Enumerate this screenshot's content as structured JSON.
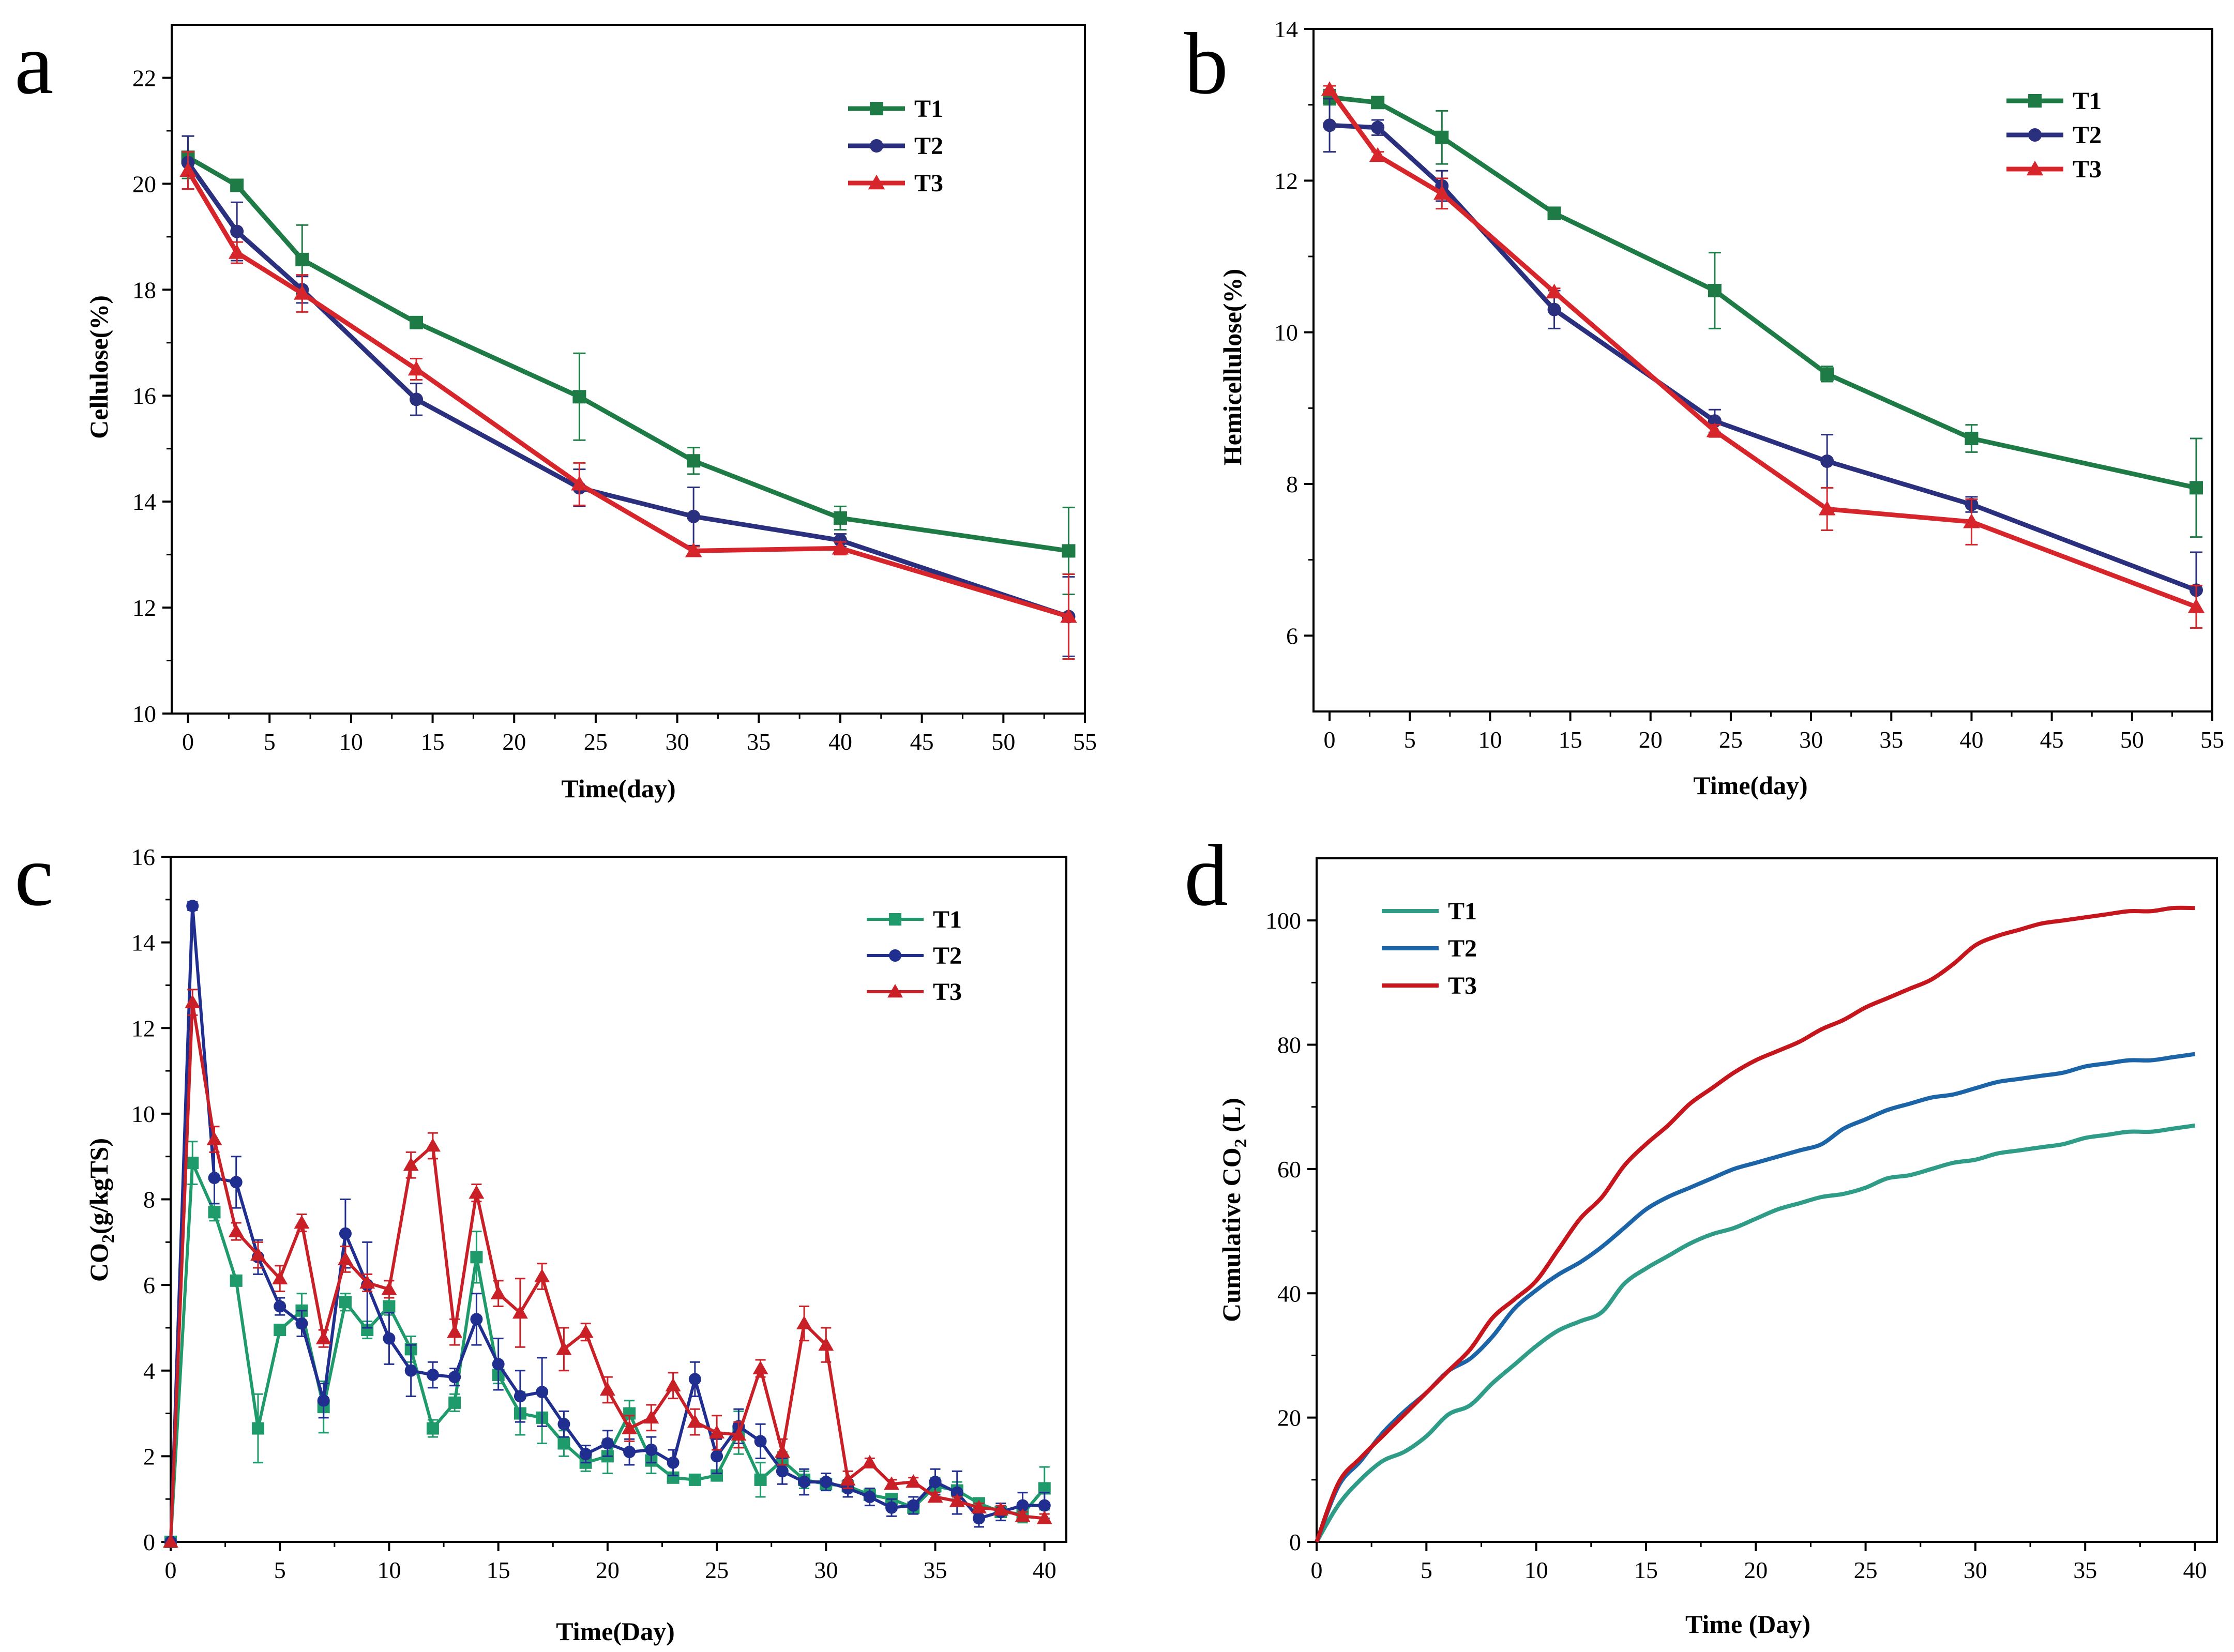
{
  "chart_data": [
    {
      "panel": "a",
      "type": "line",
      "xlabel": "Time(day)",
      "ylabel": "Cellulose(%)",
      "xlim": [
        -1,
        55
      ],
      "ylim": [
        10,
        23
      ],
      "xticks": [
        0,
        5,
        10,
        15,
        20,
        25,
        30,
        35,
        40,
        45,
        50,
        55
      ],
      "yticks": [
        10,
        12,
        14,
        16,
        18,
        20,
        22
      ],
      "legend_position": "top-right",
      "x": [
        0,
        3,
        7,
        14,
        24,
        31,
        40,
        54
      ],
      "series": [
        {
          "name": "T1",
          "color": "#1E7B45",
          "marker": "square",
          "values": [
            20.5,
            19.97,
            18.57,
            17.38,
            15.98,
            14.77,
            13.69,
            13.07
          ],
          "errors": [
            0.4,
            0.1,
            0.65,
            0.1,
            0.82,
            0.25,
            0.22,
            0.82
          ]
        },
        {
          "name": "T2",
          "color": "#2A2F7E",
          "marker": "circle",
          "values": [
            20.4,
            19.1,
            18.0,
            15.93,
            14.26,
            13.72,
            13.27,
            11.83
          ],
          "errors": [
            0.5,
            0.55,
            0.25,
            0.3,
            0.35,
            0.55,
            0.12,
            0.75
          ]
        },
        {
          "name": "T3",
          "color": "#D7262B",
          "marker": "triangle",
          "values": [
            20.25,
            18.7,
            17.93,
            16.5,
            14.33,
            13.07,
            13.12,
            11.83
          ],
          "errors": [
            0.35,
            0.2,
            0.35,
            0.2,
            0.4,
            0.08,
            0.12,
            0.8
          ]
        }
      ]
    },
    {
      "panel": "b",
      "type": "line",
      "xlabel": "Time(day)",
      "ylabel": "Hemicellulose(%)",
      "xlim": [
        -1,
        55
      ],
      "ylim": [
        5,
        14
      ],
      "xticks": [
        0,
        5,
        10,
        15,
        20,
        25,
        30,
        35,
        40,
        45,
        50,
        55
      ],
      "yticks": [
        6,
        8,
        10,
        12,
        14
      ],
      "legend_position": "top-right",
      "x": [
        0,
        3,
        7,
        14,
        24,
        31,
        40,
        54
      ],
      "series": [
        {
          "name": "T1",
          "color": "#1E7B45",
          "marker": "square",
          "values": [
            13.1,
            13.03,
            12.57,
            11.57,
            10.55,
            9.45,
            8.6,
            7.95
          ],
          "errors": [
            0.1,
            0.05,
            0.35,
            0.05,
            0.5,
            0.1,
            0.18,
            0.65
          ]
        },
        {
          "name": "T2",
          "color": "#2A2F7E",
          "marker": "circle",
          "values": [
            12.73,
            12.7,
            11.93,
            10.3,
            8.83,
            8.3,
            7.73,
            6.6
          ],
          "errors": [
            0.35,
            0.1,
            0.2,
            0.25,
            0.15,
            0.35,
            0.1,
            0.5
          ]
        },
        {
          "name": "T3",
          "color": "#D7262B",
          "marker": "triangle",
          "values": [
            13.2,
            12.33,
            11.83,
            10.53,
            8.7,
            7.67,
            7.5,
            6.38
          ],
          "errors": [
            0.05,
            0.05,
            0.2,
            0.05,
            0.08,
            0.28,
            0.3,
            0.28
          ]
        }
      ]
    },
    {
      "panel": "c",
      "type": "line",
      "xlabel": "Time(Day)",
      "ylabel_main": "CO",
      "ylabel_sub": "2",
      "ylabel_rest": "(g/kgTS)",
      "xlim": [
        0,
        41
      ],
      "ylim": [
        0,
        16
      ],
      "xticks": [
        0,
        5,
        10,
        15,
        20,
        25,
        30,
        35,
        40
      ],
      "yticks": [
        0,
        2,
        4,
        6,
        8,
        10,
        12,
        14,
        16
      ],
      "legend_position": "top-right",
      "x": [
        0,
        1,
        2,
        3,
        4,
        5,
        6,
        7,
        8,
        9,
        10,
        11,
        12,
        13,
        14,
        15,
        16,
        17,
        18,
        19,
        20,
        21,
        22,
        23,
        24,
        25,
        26,
        27,
        28,
        29,
        30,
        31,
        32,
        33,
        34,
        35,
        36,
        37,
        38,
        39,
        40
      ],
      "series": [
        {
          "name": "T1",
          "color": "#1E9A6B",
          "marker": "square",
          "values": [
            0,
            8.85,
            7.7,
            6.1,
            2.65,
            4.95,
            5.4,
            3.15,
            5.6,
            4.95,
            5.5,
            4.5,
            2.65,
            3.25,
            6.65,
            3.9,
            3.0,
            2.9,
            2.3,
            1.85,
            2.0,
            3.0,
            1.9,
            1.5,
            1.45,
            1.55,
            2.55,
            1.45,
            1.9,
            1.45,
            1.35,
            1.3,
            1.1,
            1.0,
            0.8,
            1.3,
            1.2,
            0.9,
            0.7,
            0.65,
            1.25
          ],
          "errors": [
            0,
            0.5,
            0.2,
            0,
            0.8,
            0.1,
            0.4,
            0.6,
            0.2,
            0.2,
            0.2,
            0.3,
            0.2,
            0.2,
            0.6,
            0.2,
            0.5,
            0.6,
            0.3,
            0.2,
            0.4,
            0.3,
            0.3,
            0.1,
            0.1,
            0.1,
            0.5,
            0.4,
            0.2,
            0.2,
            0.1,
            0.1,
            0.1,
            0.1,
            0.1,
            0.2,
            0.2,
            0.1,
            0.1,
            0.2,
            0.5
          ]
        },
        {
          "name": "T2",
          "color": "#1F2E8F",
          "marker": "circle",
          "values": [
            0,
            14.85,
            8.5,
            8.4,
            6.65,
            5.5,
            5.1,
            3.3,
            7.2,
            6.0,
            4.75,
            4.0,
            3.9,
            3.85,
            5.2,
            4.15,
            3.4,
            3.5,
            2.75,
            2.05,
            2.3,
            2.1,
            2.15,
            1.85,
            3.8,
            2.0,
            2.7,
            2.35,
            1.65,
            1.4,
            1.4,
            1.25,
            1.05,
            0.8,
            0.85,
            1.4,
            1.15,
            0.55,
            0.7,
            0.85,
            0.85
          ],
          "errors": [
            0,
            0.1,
            0.6,
            0.6,
            0.4,
            0.2,
            0.3,
            0.4,
            0.8,
            1.0,
            0.6,
            0.6,
            0.3,
            0.2,
            0.6,
            0.6,
            0.6,
            0.8,
            0.3,
            0.2,
            0.3,
            0.3,
            0.3,
            0.3,
            0.4,
            0.4,
            0.4,
            0.4,
            0.3,
            0.3,
            0.2,
            0.2,
            0.2,
            0.2,
            0.2,
            0.3,
            0.5,
            0.2,
            0.2,
            0.3,
            0.3
          ]
        },
        {
          "name": "T3",
          "color": "#C91F26",
          "marker": "triangle",
          "values": [
            0,
            12.6,
            9.4,
            7.25,
            6.7,
            6.15,
            7.45,
            4.75,
            6.6,
            6.05,
            5.9,
            8.8,
            9.25,
            4.9,
            8.15,
            5.8,
            5.35,
            6.2,
            4.5,
            4.9,
            3.55,
            2.65,
            2.9,
            3.65,
            2.8,
            2.55,
            2.5,
            4.05,
            2.1,
            5.1,
            4.6,
            1.45,
            1.85,
            1.35,
            1.4,
            1.05,
            0.95,
            0.8,
            0.75,
            0.6,
            0.55
          ],
          "errors": [
            0,
            0.3,
            0.3,
            0.2,
            0.3,
            0.3,
            0.2,
            0.2,
            0.3,
            0.2,
            0.2,
            0.3,
            0.3,
            0.3,
            0.2,
            0.3,
            0.8,
            0.3,
            0.5,
            0.2,
            0.3,
            0.3,
            0.3,
            0.3,
            0.3,
            0.4,
            0.3,
            0.2,
            0.3,
            0.4,
            0.4,
            0.2,
            0.1,
            0.1,
            0.1,
            0.1,
            0.1,
            0.1,
            0.1,
            0.1,
            0.1
          ]
        }
      ]
    },
    {
      "panel": "d",
      "type": "line",
      "xlabel": "Time (Day)",
      "ylabel_main": "Cumulative CO",
      "ylabel_sub": "2",
      "ylabel_rest": " (L)",
      "xlim": [
        0,
        41
      ],
      "ylim": [
        0,
        110
      ],
      "xticks": [
        0,
        5,
        10,
        15,
        20,
        25,
        30,
        35,
        40
      ],
      "yticks": [
        0,
        20,
        40,
        60,
        80,
        100
      ],
      "legend_position": "top-left",
      "x": [
        0,
        1,
        2,
        3,
        4,
        5,
        6,
        7,
        8,
        9,
        10,
        11,
        12,
        13,
        14,
        15,
        16,
        17,
        18,
        19,
        20,
        21,
        22,
        23,
        24,
        25,
        26,
        27,
        28,
        29,
        30,
        31,
        32,
        33,
        34,
        35,
        36,
        37,
        38,
        39,
        40
      ],
      "series": [
        {
          "name": "T1",
          "color": "#2E9C87",
          "values": [
            0,
            6,
            10,
            13,
            14.5,
            17,
            20.5,
            22,
            25.5,
            28.5,
            31.5,
            34,
            35.5,
            37,
            41.5,
            44,
            46,
            48,
            49.5,
            50.5,
            52,
            53.5,
            54.5,
            55.5,
            56,
            57,
            58.5,
            59,
            60,
            61,
            61.5,
            62.5,
            63,
            63.5,
            64,
            65,
            65.5,
            66,
            66,
            66.5,
            67
          ]
        },
        {
          "name": "T2",
          "color": "#1C64A8",
          "values": [
            0,
            9,
            13,
            17.5,
            21,
            24,
            27.5,
            29.5,
            33,
            37.5,
            40.5,
            43,
            45,
            47.5,
            50.5,
            53.5,
            55.5,
            57,
            58.5,
            60,
            61,
            62,
            63,
            64,
            66.5,
            68,
            69.5,
            70.5,
            71.5,
            72,
            73,
            74,
            74.5,
            75,
            75.5,
            76.5,
            77,
            77.5,
            77.5,
            78,
            78.5
          ]
        },
        {
          "name": "T3",
          "color": "#C4161C",
          "values": [
            0,
            9.5,
            13.5,
            17,
            20.5,
            24,
            27.5,
            31,
            36,
            39,
            42,
            47,
            52,
            55.5,
            60.5,
            64,
            67,
            70.5,
            73,
            75.5,
            77.5,
            79,
            80.5,
            82.5,
            84,
            86,
            87.5,
            89,
            90.5,
            93,
            96,
            97.5,
            98.5,
            99.5,
            100,
            100.5,
            101,
            101.5,
            101.5,
            102,
            102
          ]
        }
      ]
    }
  ]
}
